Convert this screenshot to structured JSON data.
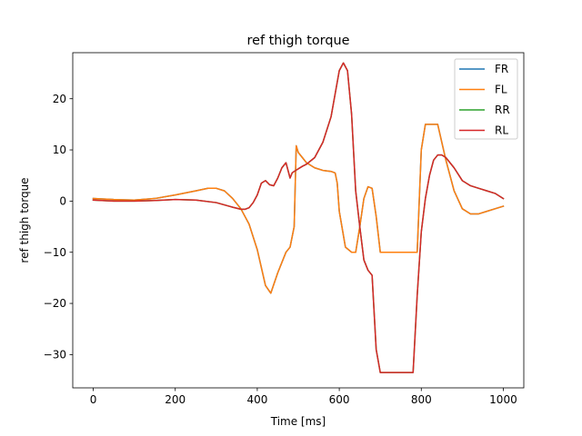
{
  "chart_data": {
    "type": "line",
    "title": "ref thigh torque",
    "xlabel": "Time [ms]",
    "ylabel": "ref thigh torque",
    "xlim": [
      -50,
      1050
    ],
    "ylim": [
      -36.5,
      29
    ],
    "xticks": [
      0,
      200,
      400,
      600,
      800,
      1000
    ],
    "yticks": [
      -30,
      -20,
      -10,
      0,
      10,
      20
    ],
    "xtick_labels": [
      "0",
      "200",
      "400",
      "600",
      "800",
      "1000"
    ],
    "ytick_labels": [
      "−30",
      "−20",
      "−10",
      "0",
      "10",
      "20"
    ],
    "grid": false,
    "legend_position": "top-right",
    "series": [
      {
        "name": "FR",
        "color": "#1f77b4",
        "x": [
          0,
          50,
          100,
          150,
          200,
          250,
          280,
          300,
          320,
          340,
          360,
          380,
          400,
          420,
          433,
          450,
          470,
          480,
          490,
          495,
          500,
          520,
          540,
          560,
          580,
          590,
          595,
          600,
          615,
          630,
          640,
          650,
          660,
          670,
          680,
          690,
          700,
          710,
          720,
          740,
          760,
          780,
          790,
          800,
          810,
          820,
          830,
          840,
          860,
          880,
          900,
          920,
          940,
          960,
          980,
          1000
        ],
        "y": [
          0.5,
          0.3,
          0.2,
          0.5,
          1.2,
          2.0,
          2.5,
          2.5,
          2.0,
          0.5,
          -1.5,
          -4.5,
          -9.5,
          -16.5,
          -18.0,
          -14.0,
          -10.0,
          -9.0,
          -5.0,
          10.8,
          9.5,
          7.5,
          6.5,
          6.0,
          5.8,
          5.5,
          3.5,
          -2.0,
          -9.0,
          -10.0,
          -10.0,
          -5.0,
          0.5,
          2.8,
          2.5,
          -3.0,
          -10.0,
          -10.0,
          -10.0,
          -10.0,
          -10.0,
          -10.0,
          -10.0,
          10.0,
          15.0,
          15.0,
          15.0,
          15.0,
          8.0,
          2.0,
          -1.5,
          -2.5,
          -2.5,
          -2.0,
          -1.5,
          -1.0
        ]
      },
      {
        "name": "FL",
        "color": "#ff7f0e",
        "x": [
          0,
          50,
          100,
          150,
          200,
          250,
          280,
          300,
          320,
          340,
          360,
          380,
          400,
          420,
          433,
          450,
          470,
          480,
          490,
          495,
          500,
          520,
          540,
          560,
          580,
          590,
          595,
          600,
          615,
          630,
          640,
          650,
          660,
          670,
          680,
          690,
          700,
          710,
          720,
          740,
          760,
          780,
          790,
          800,
          810,
          820,
          830,
          840,
          860,
          880,
          900,
          920,
          940,
          960,
          980,
          1000
        ],
        "y": [
          0.5,
          0.3,
          0.2,
          0.5,
          1.2,
          2.0,
          2.5,
          2.5,
          2.0,
          0.5,
          -1.5,
          -4.5,
          -9.5,
          -16.5,
          -18.0,
          -14.0,
          -10.0,
          -9.0,
          -5.0,
          10.8,
          9.5,
          7.5,
          6.5,
          6.0,
          5.8,
          5.5,
          3.5,
          -2.0,
          -9.0,
          -10.0,
          -10.0,
          -5.0,
          0.5,
          2.8,
          2.5,
          -3.0,
          -10.0,
          -10.0,
          -10.0,
          -10.0,
          -10.0,
          -10.0,
          -10.0,
          10.0,
          15.0,
          15.0,
          15.0,
          15.0,
          8.0,
          2.0,
          -1.5,
          -2.5,
          -2.5,
          -2.0,
          -1.5,
          -1.0
        ]
      },
      {
        "name": "RR",
        "color": "#2ca02c",
        "x": [
          0,
          50,
          100,
          150,
          200,
          250,
          300,
          340,
          360,
          370,
          380,
          390,
          400,
          410,
          420,
          430,
          440,
          450,
          460,
          470,
          480,
          485,
          490,
          500,
          510,
          520,
          540,
          560,
          580,
          600,
          610,
          620,
          630,
          640,
          650,
          660,
          670,
          680,
          690,
          700,
          710,
          720,
          740,
          760,
          780,
          790,
          800,
          810,
          820,
          830,
          840,
          850,
          860,
          870,
          880,
          900,
          920,
          940,
          960,
          980,
          1000
        ],
        "y": [
          0.2,
          0.0,
          0.0,
          0.1,
          0.3,
          0.2,
          -0.3,
          -1.2,
          -1.6,
          -1.6,
          -1.3,
          -0.3,
          1.2,
          3.5,
          4.0,
          3.2,
          3.0,
          4.5,
          6.5,
          7.5,
          4.5,
          5.5,
          5.8,
          6.3,
          6.8,
          7.2,
          8.5,
          11.5,
          16.5,
          25.5,
          27.0,
          25.5,
          17.0,
          2.0,
          -5.0,
          -11.5,
          -13.5,
          -14.5,
          -29.0,
          -33.5,
          -33.5,
          -33.5,
          -33.5,
          -33.5,
          -33.5,
          -18.5,
          -6.0,
          0.5,
          5.0,
          8.0,
          9.0,
          9.0,
          8.5,
          7.5,
          6.5,
          4.0,
          3.0,
          2.5,
          2.0,
          1.5,
          0.5
        ]
      },
      {
        "name": "RL",
        "color": "#d62728",
        "x": [
          0,
          50,
          100,
          150,
          200,
          250,
          300,
          340,
          360,
          370,
          380,
          390,
          400,
          410,
          420,
          430,
          440,
          450,
          460,
          470,
          480,
          485,
          490,
          500,
          510,
          520,
          540,
          560,
          580,
          600,
          610,
          620,
          630,
          640,
          650,
          660,
          670,
          680,
          690,
          700,
          710,
          720,
          740,
          760,
          780,
          790,
          800,
          810,
          820,
          830,
          840,
          850,
          860,
          870,
          880,
          900,
          920,
          940,
          960,
          980,
          1000
        ],
        "y": [
          0.2,
          0.0,
          0.0,
          0.1,
          0.3,
          0.2,
          -0.3,
          -1.2,
          -1.6,
          -1.6,
          -1.3,
          -0.3,
          1.2,
          3.5,
          4.0,
          3.2,
          3.0,
          4.5,
          6.5,
          7.5,
          4.5,
          5.5,
          5.8,
          6.3,
          6.8,
          7.2,
          8.5,
          11.5,
          16.5,
          25.5,
          27.0,
          25.5,
          17.0,
          2.0,
          -5.0,
          -11.5,
          -13.5,
          -14.5,
          -29.0,
          -33.5,
          -33.5,
          -33.5,
          -33.5,
          -33.5,
          -33.5,
          -18.5,
          -6.0,
          0.5,
          5.0,
          8.0,
          9.0,
          9.0,
          8.5,
          7.5,
          6.5,
          4.0,
          3.0,
          2.5,
          2.0,
          1.5,
          0.5
        ]
      }
    ]
  }
}
